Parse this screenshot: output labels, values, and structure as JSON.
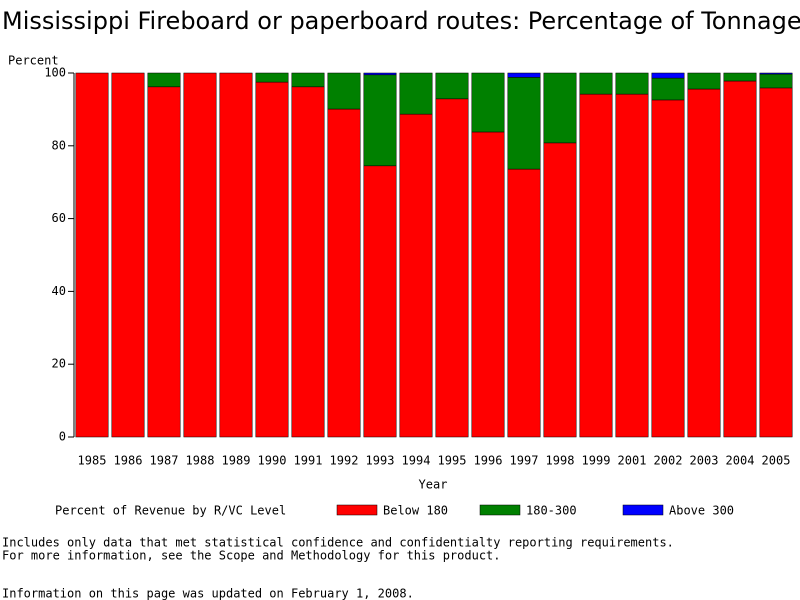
{
  "chart_data": {
    "type": "stacked-bar",
    "title": "Mississippi Fireboard or paperboard routes: Percentage of Tonnage",
    "y_label": "Percent",
    "x_label": "Year",
    "legend_title": "Percent of Revenue by R/VC Level",
    "categories": [
      "1985",
      "1986",
      "1987",
      "1988",
      "1989",
      "1990",
      "1991",
      "1992",
      "1993",
      "1994",
      "1995",
      "1996",
      "1997",
      "1998",
      "1999",
      "2001",
      "2002",
      "2003",
      "2004",
      "2005"
    ],
    "series": [
      {
        "name": "Below 180",
        "color": "#ff0000",
        "values": [
          100,
          100,
          96.2,
          100,
          100,
          97.5,
          96.2,
          90.1,
          74.5,
          88.7,
          92.9,
          83.8,
          73.6,
          80.8,
          94.2,
          94.2,
          92.6,
          95.6,
          97.8,
          95.9
        ]
      },
      {
        "name": "180-300",
        "color": "#008000",
        "values": [
          0,
          0,
          3.8,
          0,
          0,
          2.5,
          3.8,
          9.9,
          25,
          11.3,
          7.1,
          16.2,
          25.2,
          19.2,
          5.8,
          5.8,
          6.0,
          4.4,
          2.2,
          3.8
        ]
      },
      {
        "name": "Above 300",
        "color": "#0000ff",
        "values": [
          0,
          0,
          0,
          0,
          0,
          0,
          0,
          0,
          0.5,
          0,
          0,
          0,
          1.2,
          0,
          0,
          0,
          1.4,
          0,
          0,
          0.3
        ]
      }
    ],
    "ylim": [
      0,
      100
    ],
    "yticks": [
      0,
      20,
      40,
      60,
      80,
      100
    ],
    "notes": [
      "Includes only data that met statistical confidence and confidentialty reporting requirements.",
      "For more information, see the Scope and Methodology for this product.",
      "Information on this page was updated on February 1, 2008."
    ]
  }
}
